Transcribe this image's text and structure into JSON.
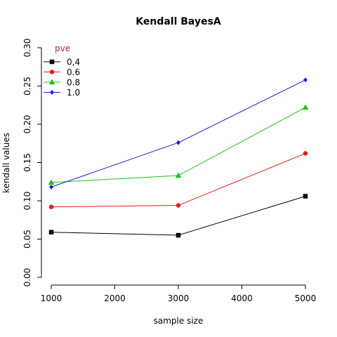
{
  "chart_data": {
    "type": "line",
    "title": "Kendall BayesA",
    "xlabel": "sample size",
    "ylabel": "kendall values",
    "xlim": [
      1000,
      5000
    ],
    "ylim": [
      0.0,
      0.3
    ],
    "xticks": [
      1000,
      2000,
      3000,
      4000,
      5000
    ],
    "yticks": [
      0.0,
      0.05,
      0.1,
      0.15,
      0.2,
      0.25,
      0.3
    ],
    "xtick_labels": [
      "1000",
      "2000",
      "3000",
      "4000",
      "5000"
    ],
    "ytick_labels": [
      "0.00",
      "0.05",
      "0.10",
      "0.15",
      "0.20",
      "0.25",
      "0.30"
    ],
    "x": [
      1000,
      3000,
      5000
    ],
    "legend": {
      "title": "pve",
      "title_color": "#e6191a",
      "position": "top-left"
    },
    "series": [
      {
        "name": "0,4",
        "color": "#000000",
        "marker": "square",
        "values": [
          0.059,
          0.055,
          0.106
        ]
      },
      {
        "name": "0.6",
        "color": "#e6191a",
        "marker": "circle",
        "values": [
          0.092,
          0.094,
          0.162
        ]
      },
      {
        "name": "0.8",
        "color": "#1dbf1d",
        "marker": "triangle",
        "values": [
          0.124,
          0.133,
          0.222
        ]
      },
      {
        "name": "1.0",
        "color": "#1a1ae6",
        "marker": "diamond",
        "values": [
          0.118,
          0.176,
          0.258
        ]
      }
    ]
  }
}
